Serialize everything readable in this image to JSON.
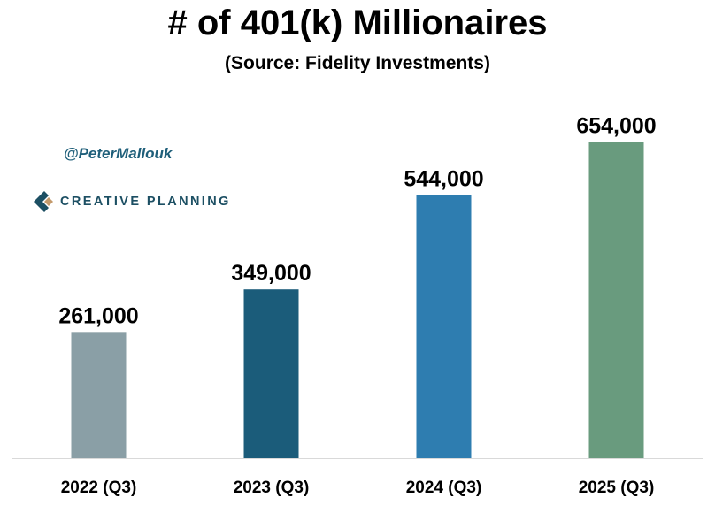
{
  "header": {
    "title": "# of 401(k) Millionaires",
    "subtitle": "(Source: Fidelity Investments)"
  },
  "branding": {
    "handle": "@PeterMallouk",
    "brand_name": "CREATIVE PLANNING",
    "logo_icon": "creative-planning-c-logo-icon",
    "logo_colors": [
      "#1c4f63",
      "#c49a6c"
    ]
  },
  "chart_data": {
    "type": "bar",
    "title": "# of 401(k) Millionaires",
    "subtitle": "(Source: Fidelity Investments)",
    "categories": [
      "2022 (Q3)",
      "2023 (Q3)",
      "2024 (Q3)",
      "2025 (Q3)"
    ],
    "values": [
      261000,
      349000,
      544000,
      654000
    ],
    "data_labels": [
      "261,000",
      "349,000",
      "544,000",
      "654,000"
    ],
    "bar_colors": [
      "#8a9fa6",
      "#1b5c7a",
      "#2e7db0",
      "#699b7e"
    ],
    "xlabel": "",
    "ylabel": "",
    "ylim": [
      0,
      750000
    ],
    "grid": false,
    "legend": "none"
  }
}
